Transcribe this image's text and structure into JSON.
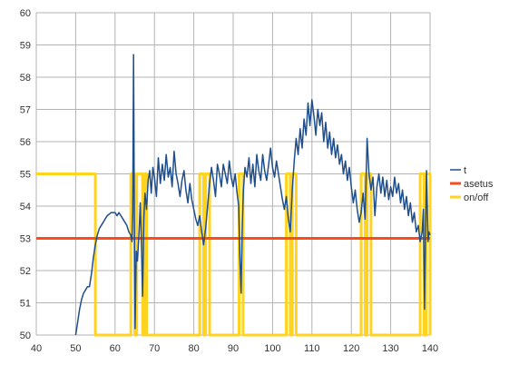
{
  "colors": {
    "t": "#1f4e8c",
    "asetus": "#ff4a1c",
    "on_off": "#ffd320",
    "grid": "#b3b3b3",
    "axis_text": "#333333"
  },
  "chart_data": {
    "type": "line",
    "title": "",
    "xlabel": "",
    "ylabel": "",
    "xlim": [
      40,
      140
    ],
    "ylim": [
      50,
      60
    ],
    "x_ticks": [
      "40",
      "50",
      "60",
      "70",
      "80",
      "90",
      "100",
      "110",
      "120",
      "130",
      "140"
    ],
    "y_ticks": [
      "50",
      "51",
      "52",
      "53",
      "54",
      "55",
      "56",
      "57",
      "58",
      "59",
      "60"
    ],
    "grid": true,
    "legend_position": "right",
    "series": [
      {
        "name": "t",
        "color": "#1f4e8c",
        "points": [
          [
            50,
            50
          ],
          [
            50.5,
            50.4
          ],
          [
            51,
            50.8
          ],
          [
            51.5,
            51.1
          ],
          [
            52,
            51.3
          ],
          [
            52.5,
            51.4
          ],
          [
            53,
            51.5
          ],
          [
            53.5,
            51.5
          ],
          [
            54,
            51.9
          ],
          [
            54.5,
            52.4
          ],
          [
            55,
            52.8
          ],
          [
            55.5,
            53.1
          ],
          [
            56,
            53.3
          ],
          [
            56.5,
            53.4
          ],
          [
            57,
            53.5
          ],
          [
            57.5,
            53.6
          ],
          [
            58,
            53.7
          ],
          [
            58.5,
            53.75
          ],
          [
            59,
            53.8
          ],
          [
            59.5,
            53.8
          ],
          [
            60,
            53.8
          ],
          [
            60.5,
            53.7
          ],
          [
            61,
            53.8
          ],
          [
            61.5,
            53.7
          ],
          [
            62,
            53.6
          ],
          [
            62.5,
            53.5
          ],
          [
            63,
            53.4
          ],
          [
            63.5,
            53.2
          ],
          [
            64,
            53.1
          ],
          [
            64.3,
            52.9
          ],
          [
            64.5,
            53.8
          ],
          [
            64.7,
            58.7
          ],
          [
            64.9,
            53.5
          ],
          [
            65.1,
            50.2
          ],
          [
            65.4,
            52.6
          ],
          [
            65.7,
            52.3
          ],
          [
            66.1,
            53.2
          ],
          [
            66.4,
            54.1
          ],
          [
            66.7,
            52.8
          ],
          [
            67,
            51.2
          ],
          [
            67.3,
            53.6
          ],
          [
            67.6,
            54.4
          ],
          [
            68,
            53.9
          ],
          [
            68.4,
            54.8
          ],
          [
            68.8,
            55.1
          ],
          [
            69.2,
            54.4
          ],
          [
            69.6,
            55.2
          ],
          [
            70,
            54.9
          ],
          [
            70.5,
            54.3
          ],
          [
            71,
            55.5
          ],
          [
            71.5,
            54.7
          ],
          [
            72,
            55.3
          ],
          [
            72.5,
            54.8
          ],
          [
            73,
            55.6
          ],
          [
            73.5,
            54.9
          ],
          [
            74,
            55.2
          ],
          [
            74.5,
            54.6
          ],
          [
            75,
            55.7
          ],
          [
            75.5,
            55.0
          ],
          [
            76,
            54.7
          ],
          [
            76.5,
            54.3
          ],
          [
            77,
            54.8
          ],
          [
            77.5,
            55.1
          ],
          [
            78,
            54.5
          ],
          [
            78.5,
            54.1
          ],
          [
            79,
            54.7
          ],
          [
            79.5,
            54.2
          ],
          [
            80,
            53.9
          ],
          [
            80.5,
            53.6
          ],
          [
            81,
            53.4
          ],
          [
            81.5,
            53.7
          ],
          [
            82,
            53.2
          ],
          [
            82.5,
            52.8
          ],
          [
            83,
            53.3
          ],
          [
            83.5,
            54.0
          ],
          [
            84,
            54.7
          ],
          [
            84.5,
            55.2
          ],
          [
            85,
            54.8
          ],
          [
            85.5,
            54.3
          ],
          [
            86,
            55.3
          ],
          [
            86.5,
            55.0
          ],
          [
            87,
            54.6
          ],
          [
            87.5,
            55.3
          ],
          [
            88,
            55.0
          ],
          [
            88.5,
            54.7
          ],
          [
            89,
            55.4
          ],
          [
            89.5,
            54.9
          ],
          [
            90,
            54.6
          ],
          [
            90.5,
            55.0
          ],
          [
            91,
            54.4
          ],
          [
            91.4,
            54.0
          ],
          [
            91.7,
            52.4
          ],
          [
            92,
            51.3
          ],
          [
            92.3,
            53.4
          ],
          [
            92.6,
            54.5
          ],
          [
            93,
            55.2
          ],
          [
            93.5,
            54.9
          ],
          [
            94,
            55.5
          ],
          [
            94.5,
            54.7
          ],
          [
            95,
            55.3
          ],
          [
            95.5,
            54.6
          ],
          [
            96,
            55.6
          ],
          [
            96.5,
            55.1
          ],
          [
            97,
            54.8
          ],
          [
            97.5,
            55.6
          ],
          [
            98,
            55.1
          ],
          [
            98.5,
            54.8
          ],
          [
            99,
            55.3
          ],
          [
            99.5,
            55.8
          ],
          [
            100,
            55.2
          ],
          [
            100.5,
            54.9
          ],
          [
            101,
            55.4
          ],
          [
            101.5,
            55.0
          ],
          [
            102,
            54.6
          ],
          [
            102.5,
            54.2
          ],
          [
            103,
            53.9
          ],
          [
            103.5,
            54.3
          ],
          [
            104,
            53.6
          ],
          [
            104.5,
            53.2
          ],
          [
            105,
            54.5
          ],
          [
            105.5,
            55.4
          ],
          [
            106,
            56.1
          ],
          [
            106.5,
            55.6
          ],
          [
            107,
            56.4
          ],
          [
            107.5,
            55.8
          ],
          [
            108,
            56.7
          ],
          [
            108.5,
            56.2
          ],
          [
            109,
            57.2
          ],
          [
            109.5,
            56.5
          ],
          [
            110,
            57.3
          ],
          [
            110.5,
            56.8
          ],
          [
            111,
            56.2
          ],
          [
            111.5,
            57.0
          ],
          [
            112,
            56.5
          ],
          [
            112.5,
            56.9
          ],
          [
            113,
            56.0
          ],
          [
            113.5,
            56.6
          ],
          [
            114,
            55.8
          ],
          [
            114.5,
            56.3
          ],
          [
            115,
            55.6
          ],
          [
            115.5,
            56.1
          ],
          [
            116,
            55.5
          ],
          [
            116.5,
            55.9
          ],
          [
            117,
            55.3
          ],
          [
            117.5,
            55.6
          ],
          [
            118,
            55.0
          ],
          [
            118.5,
            55.4
          ],
          [
            119,
            54.8
          ],
          [
            119.5,
            55.2
          ],
          [
            120,
            54.6
          ],
          [
            120.5,
            54.1
          ],
          [
            121,
            54.5
          ],
          [
            121.5,
            53.9
          ],
          [
            122,
            53.5
          ],
          [
            122.5,
            53.8
          ],
          [
            123,
            54.4
          ],
          [
            123.5,
            53.6
          ],
          [
            124,
            56.1
          ],
          [
            124.5,
            55.0
          ],
          [
            125,
            54.5
          ],
          [
            125.5,
            54.9
          ],
          [
            126,
            53.7
          ],
          [
            126.5,
            54.6
          ],
          [
            127,
            55.0
          ],
          [
            127.5,
            54.4
          ],
          [
            128,
            54.9
          ],
          [
            128.5,
            54.3
          ],
          [
            129,
            54.8
          ],
          [
            129.5,
            54.2
          ],
          [
            130,
            54.6
          ],
          [
            130.5,
            54.3
          ],
          [
            131,
            54.9
          ],
          [
            131.5,
            54.4
          ],
          [
            132,
            54.7
          ],
          [
            132.5,
            54.1
          ],
          [
            133,
            54.5
          ],
          [
            133.5,
            53.9
          ],
          [
            134,
            54.3
          ],
          [
            134.5,
            53.7
          ],
          [
            135,
            54.1
          ],
          [
            135.5,
            53.5
          ],
          [
            136,
            53.8
          ],
          [
            136.5,
            53.2
          ],
          [
            137,
            53.4
          ],
          [
            137.5,
            52.9
          ],
          [
            138,
            53.2
          ],
          [
            138.3,
            53.9
          ],
          [
            138.6,
            50.8
          ],
          [
            138.9,
            53.5
          ],
          [
            139.1,
            55.1
          ],
          [
            139.3,
            53.9
          ],
          [
            139.5,
            52.9
          ],
          [
            139.7,
            53.2
          ],
          [
            140,
            53.1
          ]
        ]
      },
      {
        "name": "asetus",
        "color": "#ff4a1c",
        "points": [
          [
            40,
            53
          ],
          [
            140,
            53
          ]
        ]
      },
      {
        "name": "on/off",
        "color": "#ffd320",
        "points": [
          [
            40,
            55
          ],
          [
            55,
            55
          ],
          [
            55,
            50
          ],
          [
            64,
            50
          ],
          [
            64,
            55
          ],
          [
            65,
            55
          ],
          [
            65,
            50
          ],
          [
            65.5,
            50
          ],
          [
            65.5,
            55
          ],
          [
            67,
            55
          ],
          [
            67,
            50
          ],
          [
            67.5,
            50
          ],
          [
            67.5,
            55
          ],
          [
            68,
            55
          ],
          [
            68,
            50
          ],
          [
            81.5,
            50
          ],
          [
            81.5,
            55
          ],
          [
            82.5,
            55
          ],
          [
            82.5,
            50
          ],
          [
            83,
            50
          ],
          [
            83,
            55
          ],
          [
            84,
            55
          ],
          [
            84,
            50
          ],
          [
            91.5,
            50
          ],
          [
            91.5,
            55
          ],
          [
            92.5,
            55
          ],
          [
            92.5,
            50
          ],
          [
            103.5,
            50
          ],
          [
            103.5,
            55
          ],
          [
            104.5,
            55
          ],
          [
            104.5,
            50
          ],
          [
            105,
            50
          ],
          [
            105,
            55
          ],
          [
            106,
            55
          ],
          [
            106,
            50
          ],
          [
            122.5,
            50
          ],
          [
            122.5,
            55
          ],
          [
            123.5,
            55
          ],
          [
            123.5,
            50
          ],
          [
            124,
            50
          ],
          [
            124,
            55
          ],
          [
            125,
            55
          ],
          [
            125,
            50
          ],
          [
            137.5,
            50
          ],
          [
            137.5,
            55
          ],
          [
            138.5,
            55
          ],
          [
            138.5,
            50
          ],
          [
            139,
            50
          ],
          [
            139,
            55
          ],
          [
            140,
            55
          ],
          [
            140,
            50
          ]
        ]
      }
    ]
  }
}
